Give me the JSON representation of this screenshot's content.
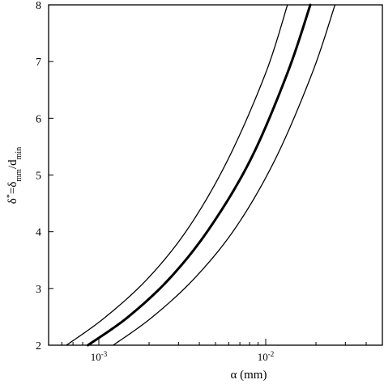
{
  "chart_data": {
    "type": "line",
    "xscale": "log",
    "xlim": [
      0.0005,
      0.05
    ],
    "ylim": [
      2,
      8
    ],
    "grid": false,
    "legend": "none",
    "xlabel": "α (mm)",
    "ylabel": {
      "base": "δ",
      "sup": "*",
      "eq": "=δ",
      "sub1": "mm",
      "div": "/d",
      "sub2": "min"
    },
    "x_ticks": [
      {
        "value": 0.001,
        "base": "10",
        "exp": "-3"
      },
      {
        "value": 0.01,
        "base": "10",
        "exp": "-2"
      }
    ],
    "y_ticks": [
      {
        "value": 2,
        "label": "2"
      },
      {
        "value": 3,
        "label": "3"
      },
      {
        "value": 4,
        "label": "4"
      },
      {
        "value": 5,
        "label": "5"
      },
      {
        "value": 6,
        "label": "6"
      },
      {
        "value": 7,
        "label": "7"
      },
      {
        "value": 8,
        "label": "8"
      }
    ],
    "series": [
      {
        "style": "thin",
        "x": [
          0.00064,
          0.0011,
          0.002,
          0.0035,
          0.006,
          0.01,
          0.0135
        ],
        "y": [
          2.0,
          2.5,
          3.2,
          4.1,
          5.3,
          6.8,
          8.0
        ]
      },
      {
        "style": "thick",
        "x": [
          0.00086,
          0.0015,
          0.0027,
          0.0047,
          0.0082,
          0.0135,
          0.0185
        ],
        "y": [
          2.0,
          2.5,
          3.2,
          4.1,
          5.3,
          6.8,
          8.0
        ]
      },
      {
        "style": "thin",
        "x": [
          0.00122,
          0.0021,
          0.0038,
          0.0067,
          0.0115,
          0.019,
          0.026
        ],
        "y": [
          2.0,
          2.5,
          3.2,
          4.1,
          5.3,
          6.8,
          8.0
        ]
      }
    ]
  }
}
